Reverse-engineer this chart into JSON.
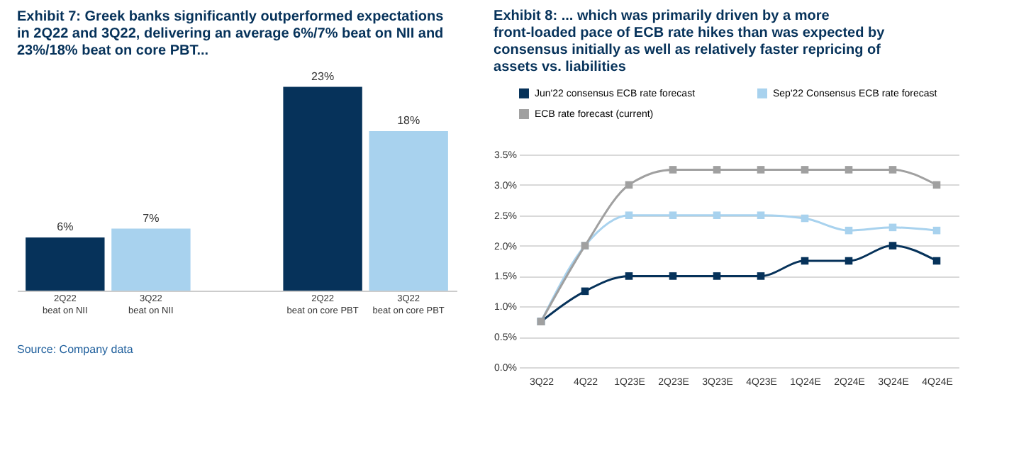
{
  "chart_data": [
    {
      "type": "bar",
      "title": "Exhibit 7: Greek banks significantly outperformed expectations in 2Q22 and 3Q22, delivering an average 6%/7% beat on NII and 23%/18% beat on core PBT...",
      "categories": [
        "2Q22 beat on NII",
        "3Q22 beat on NII",
        null,
        "2Q22 beat on core PBT",
        "3Q22 beat on core PBT"
      ],
      "values": [
        6,
        7,
        null,
        23,
        18
      ],
      "colors": [
        "#06325a",
        "#a8d2ee",
        "#06325a",
        "#06325a",
        "#a8d2ee"
      ],
      "value_labels": [
        "6%",
        "7%",
        null,
        "23%",
        "18%"
      ],
      "annotations": [
        "Source: Company data"
      ]
    },
    {
      "type": "line",
      "title": "Exhibit 8: ... which was primarily driven by a more front-loaded pace of ECB rate hikes than was expected by consensus initially as well as relatively faster repricing of assets vs. liabilities",
      "categories": [
        "3Q22",
        "4Q22",
        "1Q23E",
        "2Q23E",
        "3Q23E",
        "4Q23E",
        "1Q24E",
        "2Q24E",
        "3Q24E",
        "4Q24E"
      ],
      "series": [
        {
          "name": "Jun'22 consensus ECB rate forecast",
          "color": "#06325a",
          "values": [
            0.75,
            1.25,
            1.5,
            1.5,
            1.5,
            1.5,
            1.75,
            1.75,
            2.0,
            1.75
          ]
        },
        {
          "name": "Sep'22 Consensus ECB rate forecast",
          "color": "#a8d2ee",
          "values": [
            0.75,
            2.0,
            2.5,
            2.5,
            2.5,
            2.5,
            2.45,
            2.25,
            2.3,
            2.25
          ]
        },
        {
          "name": "ECB rate forecast (current)",
          "color": "#a0a0a0",
          "values": [
            0.75,
            2.0,
            3.0,
            3.25,
            3.25,
            3.25,
            3.25,
            3.25,
            3.25,
            3.0
          ]
        }
      ],
      "ylim": [
        0,
        3.5
      ],
      "yticks": [
        {
          "value": 0,
          "label": "0.0%"
        },
        {
          "value": 0.5,
          "label": "0.5%"
        },
        {
          "value": 1.0,
          "label": "1.0%"
        },
        {
          "value": 1.5,
          "label": "1.5%"
        },
        {
          "value": 2.0,
          "label": "2.0%"
        },
        {
          "value": 2.5,
          "label": "2.5%"
        },
        {
          "value": 3.0,
          "label": "3.0%"
        },
        {
          "value": 3.5,
          "label": "3.5%"
        }
      ],
      "grid": "y",
      "legend": "top",
      "marker": "square",
      "line_style": "solid"
    }
  ]
}
